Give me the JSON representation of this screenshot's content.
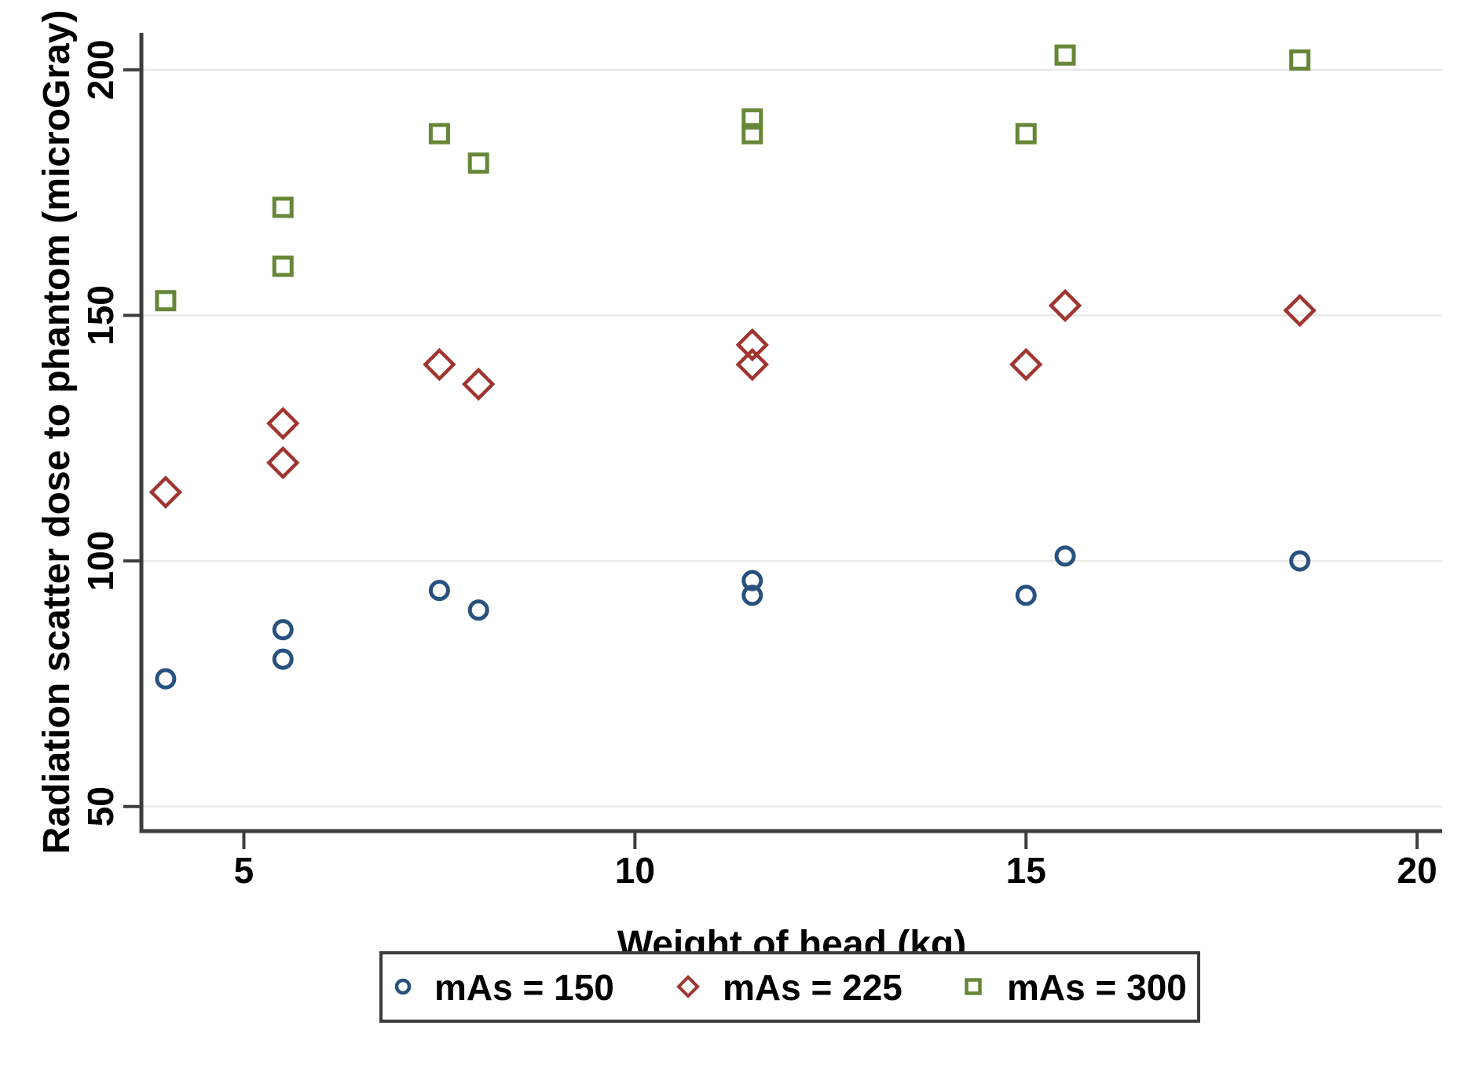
{
  "figure": {
    "background": "#ffffff",
    "axis_color": "#3d3d3d",
    "grid_color": "#e8e8e8",
    "legend_border_color": "#3c3c3c"
  },
  "chart_data": {
    "type": "scatter",
    "title": "",
    "xlabel": "Weight of head (kg)",
    "ylabel": "Radiation scatter dose to phantom (microGray)",
    "xlim": [
      3.69,
      20.32
    ],
    "ylim": [
      45,
      207.5
    ],
    "x_ticks": [
      5,
      10,
      15,
      20
    ],
    "y_ticks": [
      50,
      100,
      150,
      200
    ],
    "grid": "horizontal-only",
    "legend_position": "bottom",
    "series": [
      {
        "name": "mAs = 150",
        "marker": "circle",
        "color": "#27517f",
        "points": [
          [
            4,
            76
          ],
          [
            5.5,
            86
          ],
          [
            5.5,
            80
          ],
          [
            7.5,
            94
          ],
          [
            8,
            90
          ],
          [
            11.5,
            96
          ],
          [
            11.5,
            93
          ],
          [
            15,
            93
          ],
          [
            15.5,
            101
          ],
          [
            18.5,
            100
          ]
        ]
      },
      {
        "name": "mAs = 225",
        "marker": "diamond",
        "color": "#a03530",
        "points": [
          [
            4,
            114
          ],
          [
            5.5,
            128
          ],
          [
            5.5,
            120
          ],
          [
            7.5,
            140
          ],
          [
            8,
            136
          ],
          [
            11.5,
            144
          ],
          [
            11.5,
            140
          ],
          [
            15,
            140
          ],
          [
            15.5,
            152
          ],
          [
            18.5,
            151
          ]
        ]
      },
      {
        "name": "mAs = 300",
        "marker": "square",
        "color": "#668738",
        "points": [
          [
            4,
            153
          ],
          [
            5.5,
            172
          ],
          [
            5.5,
            160
          ],
          [
            7.5,
            187
          ],
          [
            8,
            181
          ],
          [
            11.5,
            190
          ],
          [
            11.5,
            187
          ],
          [
            15,
            187
          ],
          [
            15.5,
            203
          ],
          [
            18.5,
            202
          ]
        ]
      }
    ]
  }
}
